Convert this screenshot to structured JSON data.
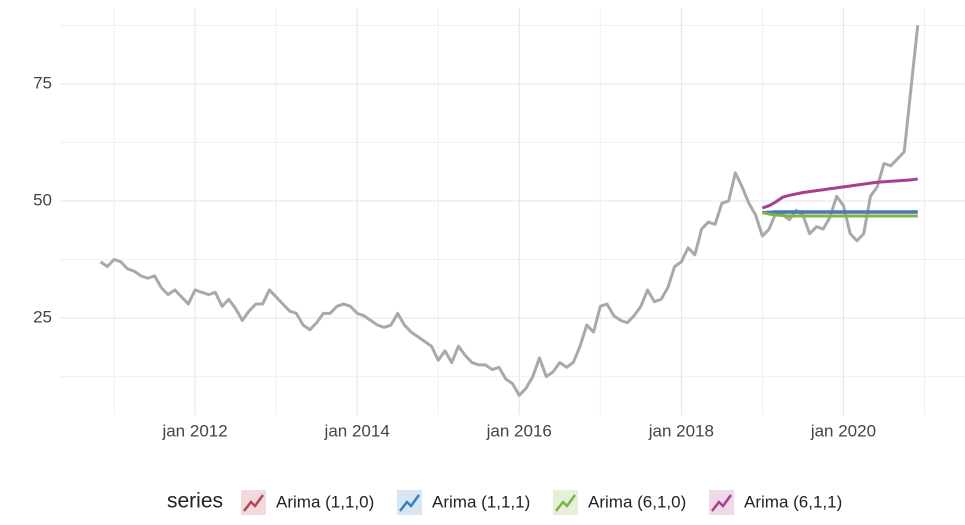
{
  "chart_data": {
    "type": "line",
    "legend_title": "series",
    "legend_position": "bottom",
    "grid": true,
    "xlim": [
      "2010-05",
      "2021-07"
    ],
    "xticks": [
      {
        "value": "2012-01",
        "label": "jan 2012"
      },
      {
        "value": "2014-01",
        "label": "jan 2014"
      },
      {
        "value": "2016-01",
        "label": "jan 2016"
      },
      {
        "value": "2018-01",
        "label": "jan 2018"
      },
      {
        "value": "2020-01",
        "label": "jan 2020"
      }
    ],
    "x_minor_gridlines": [
      "2011-01",
      "2013-01",
      "2015-01",
      "2017-01",
      "2019-01",
      "2021-01"
    ],
    "ylim": [
      4.3,
      91.2
    ],
    "yticks": [
      25,
      50,
      75
    ],
    "y_minor_gridlines": [
      12.5,
      37.5,
      62.5,
      87.5
    ],
    "history": {
      "color": "#a9a9a9",
      "x": [
        "2010-11",
        "2010-12",
        "2011-01",
        "2011-02",
        "2011-03",
        "2011-04",
        "2011-05",
        "2011-06",
        "2011-07",
        "2011-08",
        "2011-09",
        "2011-10",
        "2011-11",
        "2011-12",
        "2012-01",
        "2012-02",
        "2012-03",
        "2012-04",
        "2012-05",
        "2012-06",
        "2012-07",
        "2012-08",
        "2012-09",
        "2012-10",
        "2012-11",
        "2012-12",
        "2013-01",
        "2013-02",
        "2013-03",
        "2013-04",
        "2013-05",
        "2013-06",
        "2013-07",
        "2013-08",
        "2013-09",
        "2013-10",
        "2013-11",
        "2013-12",
        "2014-01",
        "2014-02",
        "2014-03",
        "2014-04",
        "2014-05",
        "2014-06",
        "2014-07",
        "2014-08",
        "2014-09",
        "2014-10",
        "2014-11",
        "2014-12",
        "2015-01",
        "2015-02",
        "2015-03",
        "2015-04",
        "2015-05",
        "2015-06",
        "2015-07",
        "2015-08",
        "2015-09",
        "2015-10",
        "2015-11",
        "2015-12",
        "2016-01",
        "2016-02",
        "2016-03",
        "2016-04",
        "2016-05",
        "2016-06",
        "2016-07",
        "2016-08",
        "2016-09",
        "2016-10",
        "2016-11",
        "2016-12",
        "2017-01",
        "2017-02",
        "2017-03",
        "2017-04",
        "2017-05",
        "2017-06",
        "2017-07",
        "2017-08",
        "2017-09",
        "2017-10",
        "2017-11",
        "2017-12",
        "2018-01",
        "2018-02",
        "2018-03",
        "2018-04",
        "2018-05",
        "2018-06",
        "2018-07",
        "2018-08",
        "2018-09",
        "2018-10",
        "2018-11",
        "2018-12",
        "2019-01",
        "2019-02",
        "2019-03",
        "2019-04",
        "2019-05",
        "2019-06",
        "2019-07",
        "2019-08",
        "2019-09",
        "2019-10",
        "2019-11",
        "2019-12",
        "2020-01",
        "2020-02",
        "2020-03",
        "2020-04",
        "2020-05",
        "2020-06",
        "2020-07",
        "2020-08",
        "2020-09",
        "2020-10",
        "2020-11",
        "2020-12"
      ],
      "values": [
        37,
        36,
        37.5,
        37,
        35.5,
        35,
        34,
        33.5,
        34,
        31.5,
        30,
        31,
        29.5,
        28,
        31,
        30.5,
        30,
        30.5,
        27.5,
        29,
        27,
        24.5,
        26.5,
        28,
        28,
        31,
        29.5,
        28,
        26.5,
        26,
        23.5,
        22.5,
        24,
        26,
        26,
        27.5,
        28,
        27.5,
        26,
        25.5,
        24.5,
        23.5,
        23,
        23.5,
        26,
        23.5,
        22,
        21,
        20,
        19,
        16,
        18,
        15.5,
        19,
        17,
        15.5,
        15,
        15,
        14,
        14.5,
        12,
        11,
        8.5,
        10,
        12.5,
        16.5,
        12.5,
        13.5,
        15.5,
        14.5,
        15.5,
        19,
        23.5,
        22,
        27.5,
        28,
        25.5,
        24.5,
        24,
        25.5,
        27.5,
        31,
        28.5,
        29,
        31.5,
        36,
        37,
        40,
        38.5,
        44,
        45.5,
        45,
        49.5,
        50,
        56,
        53,
        49.5,
        47,
        42.5,
        44,
        47.5,
        47,
        46,
        48,
        47,
        43,
        44.5,
        44,
        46.5,
        51,
        49,
        43,
        41.5,
        43,
        51,
        53,
        58,
        57.5,
        59,
        60.5,
        74,
        87.5
      ]
    },
    "series": [
      {
        "name": "Arima (1,1,0)",
        "color": "#b5474e",
        "x": [
          "2019-01",
          "2019-02",
          "2019-03",
          "2019-04",
          "2019-05",
          "2019-06",
          "2019-07",
          "2019-08",
          "2019-09",
          "2019-10",
          "2019-11",
          "2019-12",
          "2020-01",
          "2020-02",
          "2020-03",
          "2020-04",
          "2020-05",
          "2020-06",
          "2020-07",
          "2020-08",
          "2020-09",
          "2020-10",
          "2020-11",
          "2020-12"
        ],
        "values": [
          47.5,
          47.6,
          47.6,
          47.6,
          47.6,
          47.6,
          47.6,
          47.6,
          47.6,
          47.6,
          47.6,
          47.6,
          47.6,
          47.6,
          47.6,
          47.6,
          47.6,
          47.6,
          47.6,
          47.6,
          47.6,
          47.6,
          47.6,
          47.6
        ]
      },
      {
        "name": "Arima (1,1,1)",
        "color": "#3a7fbf",
        "x": [
          "2019-01",
          "2019-02",
          "2019-03",
          "2019-04",
          "2019-05",
          "2019-06",
          "2019-07",
          "2019-08",
          "2019-09",
          "2019-10",
          "2019-11",
          "2019-12",
          "2020-01",
          "2020-02",
          "2020-03",
          "2020-04",
          "2020-05",
          "2020-06",
          "2020-07",
          "2020-08",
          "2020-09",
          "2020-10",
          "2020-11",
          "2020-12"
        ],
        "values": [
          47.5,
          47.6,
          47.7,
          47.7,
          47.7,
          47.7,
          47.7,
          47.7,
          47.7,
          47.7,
          47.7,
          47.7,
          47.7,
          47.7,
          47.7,
          47.7,
          47.7,
          47.7,
          47.7,
          47.7,
          47.7,
          47.7,
          47.7,
          47.7
        ]
      },
      {
        "name": "Arima (6,1,0)",
        "color": "#7ab648",
        "x": [
          "2019-01",
          "2019-02",
          "2019-03",
          "2019-04",
          "2019-05",
          "2019-06",
          "2019-07",
          "2019-08",
          "2019-09",
          "2019-10",
          "2019-11",
          "2019-12",
          "2020-01",
          "2020-02",
          "2020-03",
          "2020-04",
          "2020-05",
          "2020-06",
          "2020-07",
          "2020-08",
          "2020-09",
          "2020-10",
          "2020-11",
          "2020-12"
        ],
        "values": [
          47.5,
          47.2,
          47,
          46.9,
          46.8,
          46.8,
          46.8,
          46.8,
          46.8,
          46.8,
          46.8,
          46.8,
          46.8,
          46.8,
          46.8,
          46.8,
          46.8,
          46.8,
          46.8,
          46.8,
          46.8,
          46.8,
          46.8,
          46.8
        ]
      },
      {
        "name": "Arima (6,1,1)",
        "color": "#a83f8e",
        "x": [
          "2019-01",
          "2019-02",
          "2019-03",
          "2019-04",
          "2019-05",
          "2019-06",
          "2019-07",
          "2019-08",
          "2019-09",
          "2019-10",
          "2019-11",
          "2019-12",
          "2020-01",
          "2020-02",
          "2020-03",
          "2020-04",
          "2020-05",
          "2020-06",
          "2020-07",
          "2020-08",
          "2020-09",
          "2020-10",
          "2020-11",
          "2020-12"
        ],
        "values": [
          48.5,
          49,
          49.8,
          50.8,
          51.2,
          51.5,
          51.8,
          52,
          52.2,
          52.4,
          52.6,
          52.8,
          53,
          53.2,
          53.4,
          53.6,
          53.8,
          54,
          54.1,
          54.2,
          54.3,
          54.4,
          54.5,
          54.7
        ]
      }
    ]
  }
}
